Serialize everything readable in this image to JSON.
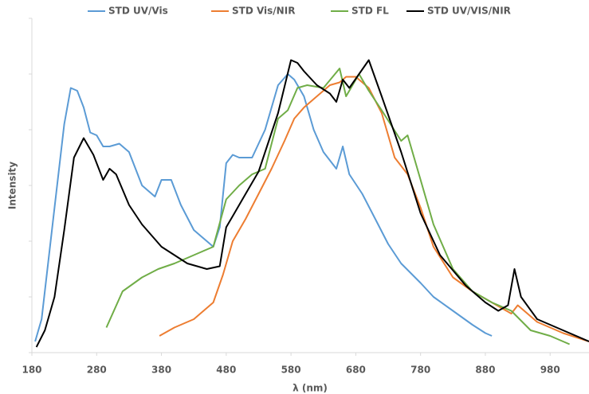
{
  "chart_data": {
    "type": "line",
    "x_label": "λ (nm)",
    "y_label": "Intensity",
    "xlim": [
      180,
      1040
    ],
    "xticks": [
      180,
      280,
      380,
      480,
      580,
      680,
      780,
      880,
      980
    ],
    "ylim": [
      0,
      6
    ],
    "yticks": [
      0,
      1,
      2,
      3,
      4,
      5,
      6
    ],
    "legend": "top",
    "series": [
      {
        "name": "STD UV/Vis",
        "color": "#5b9bd5",
        "x": [
          185,
          195,
          205,
          215,
          230,
          240,
          250,
          260,
          270,
          280,
          290,
          300,
          315,
          330,
          350,
          370,
          380,
          395,
          410,
          430,
          450,
          460,
          470,
          480,
          490,
          500,
          520,
          540,
          560,
          575,
          585,
          600,
          615,
          630,
          650,
          660,
          670,
          690,
          710,
          730,
          750,
          780,
          800,
          830,
          860,
          880,
          890
        ],
        "values": [
          0.2,
          0.6,
          1.6,
          2.6,
          4.1,
          4.75,
          4.7,
          4.4,
          3.95,
          3.9,
          3.7,
          3.7,
          3.75,
          3.6,
          3.0,
          2.8,
          3.1,
          3.1,
          2.65,
          2.2,
          2.0,
          1.9,
          2.25,
          3.4,
          3.55,
          3.5,
          3.5,
          4.0,
          4.8,
          5.0,
          4.9,
          4.6,
          4.0,
          3.6,
          3.3,
          3.7,
          3.2,
          2.85,
          2.4,
          1.95,
          1.6,
          1.25,
          1.0,
          0.75,
          0.5,
          0.35,
          0.3
        ]
      },
      {
        "name": "STD Vis/NIR",
        "color": "#ed7d31",
        "x": [
          377,
          400,
          430,
          460,
          475,
          490,
          510,
          530,
          550,
          570,
          585,
          600,
          620,
          640,
          655,
          665,
          680,
          700,
          720,
          740,
          760,
          780,
          800,
          830,
          860,
          890,
          920,
          930,
          960,
          1000,
          1040
        ],
        "values": [
          0.3,
          0.45,
          0.6,
          0.9,
          1.4,
          2.0,
          2.4,
          2.85,
          3.3,
          3.8,
          4.2,
          4.4,
          4.6,
          4.8,
          4.85,
          4.95,
          4.95,
          4.75,
          4.3,
          3.5,
          3.2,
          2.6,
          1.9,
          1.35,
          1.1,
          0.9,
          0.7,
          0.85,
          0.55,
          0.35,
          0.2
        ]
      },
      {
        "name": "STD FL",
        "color": "#70ad47",
        "x": [
          295,
          320,
          350,
          375,
          400,
          420,
          440,
          460,
          480,
          500,
          520,
          540,
          560,
          575,
          590,
          605,
          630,
          655,
          665,
          685,
          700,
          720,
          750,
          760,
          780,
          800,
          830,
          860,
          890,
          920,
          950,
          980,
          1010
        ],
        "values": [
          0.45,
          1.1,
          1.35,
          1.5,
          1.6,
          1.7,
          1.8,
          1.9,
          2.75,
          3.0,
          3.2,
          3.3,
          4.2,
          4.35,
          4.75,
          4.8,
          4.75,
          5.1,
          4.6,
          5.0,
          4.7,
          4.35,
          3.8,
          3.9,
          3.1,
          2.3,
          1.5,
          1.1,
          0.9,
          0.75,
          0.4,
          0.3,
          0.15
        ]
      },
      {
        "name": "STD UV/VIS/NIR",
        "color": "#000000",
        "x": [
          187,
          200,
          215,
          230,
          245,
          260,
          275,
          290,
          300,
          310,
          330,
          350,
          380,
          420,
          450,
          470,
          480,
          490,
          510,
          530,
          560,
          580,
          590,
          600,
          620,
          640,
          650,
          660,
          670,
          685,
          700,
          720,
          750,
          780,
          810,
          850,
          880,
          900,
          915,
          925,
          935,
          960,
          1000,
          1040
        ],
        "values": [
          0.1,
          0.4,
          1.0,
          2.2,
          3.5,
          3.85,
          3.55,
          3.1,
          3.3,
          3.2,
          2.65,
          2.3,
          1.9,
          1.6,
          1.5,
          1.55,
          2.25,
          2.45,
          2.85,
          3.25,
          4.3,
          5.25,
          5.2,
          5.05,
          4.8,
          4.65,
          4.5,
          4.9,
          4.75,
          5.0,
          5.25,
          4.6,
          3.6,
          2.5,
          1.75,
          1.2,
          0.9,
          0.75,
          0.85,
          1.5,
          1.0,
          0.6,
          0.4,
          0.2
        ]
      }
    ]
  }
}
